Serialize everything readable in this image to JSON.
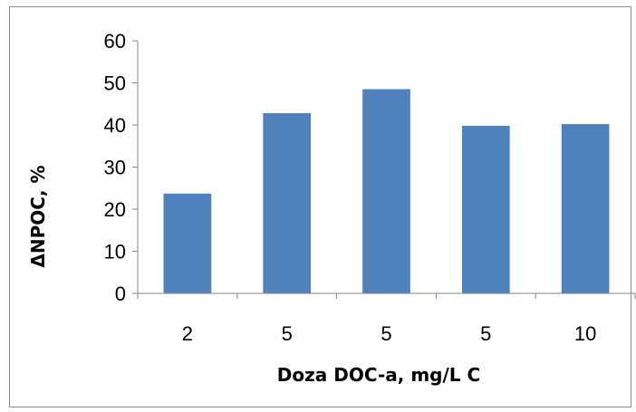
{
  "chart_data": {
    "type": "bar",
    "title": "",
    "xlabel": "Doza DOC-a, mg/L C",
    "ylabel": "ΔNPOC, %",
    "categories": [
      "2",
      "5",
      "5",
      "5",
      "10"
    ],
    "values": [
      23.7,
      42.8,
      48.5,
      39.8,
      40.2
    ],
    "ylim": [
      0,
      60
    ],
    "yticks": [
      "0",
      "10",
      "20",
      "30",
      "40",
      "50",
      "60"
    ],
    "grid": false,
    "legend": "none",
    "bar_color": "#4f81bd",
    "axis_color": "#868686"
  }
}
